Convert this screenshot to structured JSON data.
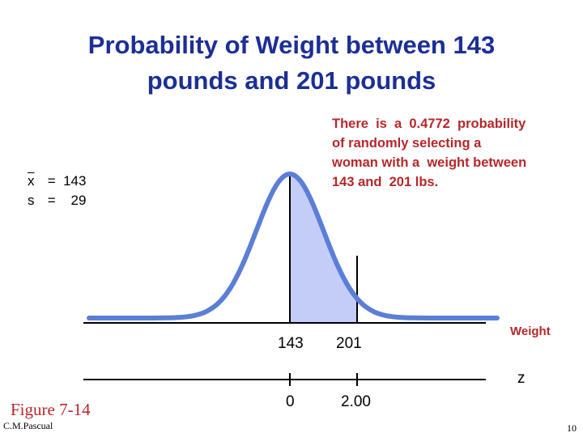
{
  "title": {
    "line1": "Probability of Weight between 143",
    "line2": "pounds and 201 pounds"
  },
  "stats": {
    "mean_symbol": "x",
    "mean_eq": " =  143",
    "sd_symbol": "s",
    "sd_eq": " =    29"
  },
  "callout": {
    "lines": [
      "There  is  a  0.4772  probability",
      "of randomly selecting a",
      "woman with a  weight between",
      "143 and  201 lbs."
    ]
  },
  "axes": {
    "weight_label": "Weight",
    "z_label": "z",
    "weight_ticks": [
      "143",
      "201"
    ],
    "z_ticks": [
      "0",
      "2.00"
    ]
  },
  "colors": {
    "curve": "#5b7fd6",
    "shaded": "#c4ccf8",
    "title": "#1c2f96",
    "accent_red": "#b5272a"
  },
  "footer": {
    "figure": "Figure 7-14",
    "author": "C.M.Pascual",
    "page": "10"
  }
}
